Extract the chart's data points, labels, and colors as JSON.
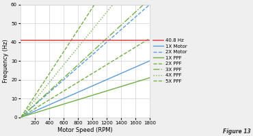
{
  "title": "",
  "xlabel": "Motor Speed (RPM)",
  "ylabel": "Frequency (Hz)",
  "resonance_freq": 40.8,
  "rpm_max": 1800,
  "ylim": [
    0,
    60
  ],
  "xlim": [
    0,
    1800
  ],
  "xticks": [
    200,
    400,
    600,
    800,
    1000,
    1200,
    1400,
    1600,
    1800
  ],
  "yticks": [
    0,
    10,
    20,
    30,
    40,
    50,
    60
  ],
  "lines": [
    {
      "label": "40.8 Hz",
      "type": "hline",
      "color": "#e05050",
      "lw": 1.2,
      "ls": "-",
      "slope_hz_per_rpm": 0
    },
    {
      "label": "1X Motor",
      "type": "linear",
      "color": "#5b9bd5",
      "lw": 1.0,
      "ls": "-",
      "slope_hz_per_rpm": 0.01667
    },
    {
      "label": "2X Motor",
      "type": "linear",
      "color": "#5b9bd5",
      "lw": 1.0,
      "ls": "--",
      "slope_hz_per_rpm": 0.03333
    },
    {
      "label": "1X PPF",
      "type": "linear",
      "color": "#70ad47",
      "lw": 1.0,
      "ls": "-",
      "slope_hz_per_rpm": 0.01167
    },
    {
      "label": "2X PPF",
      "type": "linear",
      "color": "#70ad47",
      "lw": 1.0,
      "ls": "--",
      "slope_hz_per_rpm": 0.02333
    },
    {
      "label": "3X PPF",
      "type": "linear",
      "color": "#70ad47",
      "lw": 1.0,
      "ls": "-.",
      "slope_hz_per_rpm": 0.035
    },
    {
      "label": "4X PPF",
      "type": "linear",
      "color": "#70ad47",
      "lw": 1.0,
      "ls": ":",
      "slope_hz_per_rpm": 0.04667
    },
    {
      "label": "5X PPF",
      "type": "linear",
      "color": "#70ad47",
      "lw": 1.0,
      "ls": "--",
      "slope_hz_per_rpm": 0.05833
    }
  ],
  "figure_label": "Figure 13",
  "bg_color": "#efefef",
  "plot_bg_color": "#ffffff",
  "grid_color": "#d0d0d0",
  "legend_fontsize": 5.0,
  "axis_fontsize": 6.0,
  "tick_fontsize": 5.0
}
